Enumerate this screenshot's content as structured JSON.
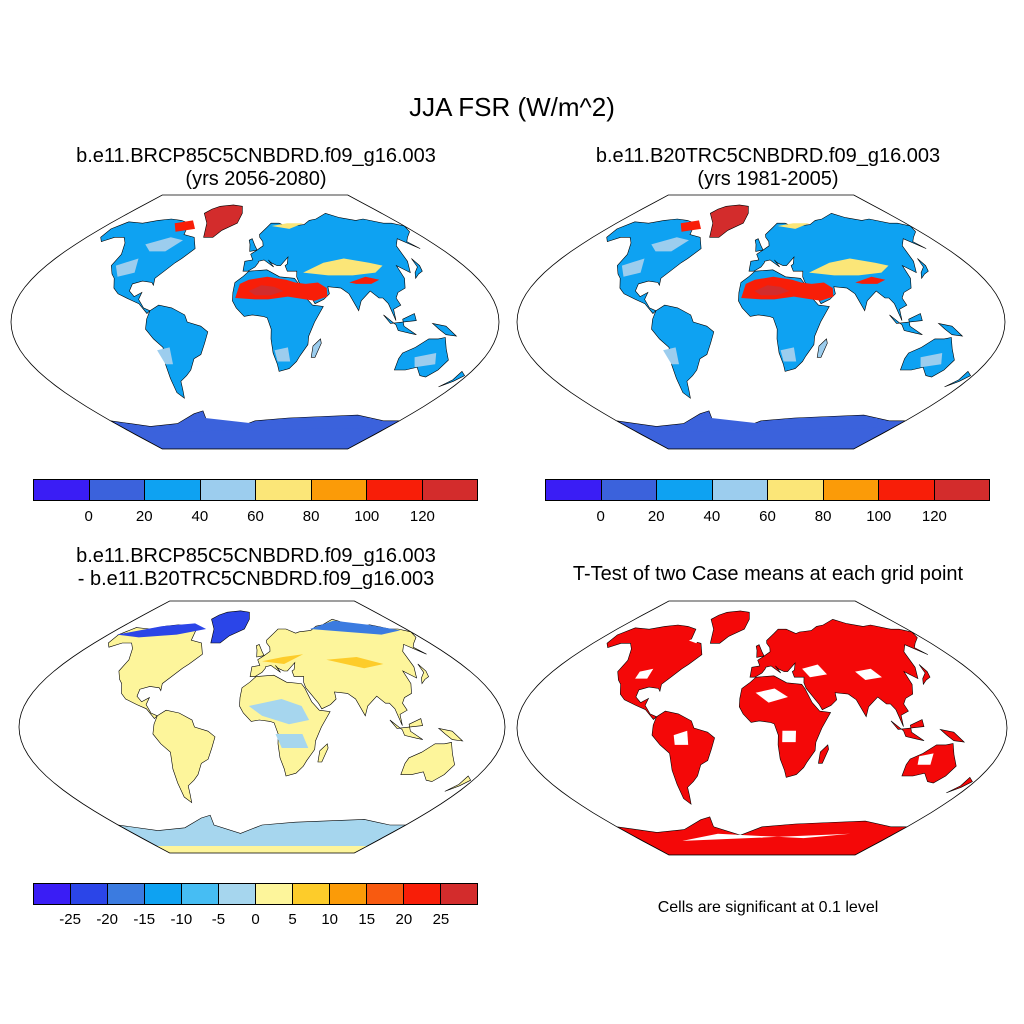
{
  "title": "JJA FSR (W/m^2)",
  "panels": [
    {
      "id": "future",
      "title_line1": "b.e11.BRCP85C5CNBDRD.f09_g16.003",
      "title_line2": "(yrs 2056-2080)"
    },
    {
      "id": "historical",
      "title_line1": "b.e11.B20TRC5CNBDRD.f09_g16.003",
      "title_line2": "(yrs 1981-2005)"
    },
    {
      "id": "difference",
      "title_line1": "b.e11.BRCP85C5CNBDRD.f09_g16.003",
      "title_line2": "- b.e11.B20TRC5CNBDRD.f09_g16.003"
    },
    {
      "id": "ttest",
      "title_line1": "T-Test of two Case means at each grid point",
      "title_line2": ""
    }
  ],
  "colorbar_abs": {
    "colors": [
      "#3a1df5",
      "#3b62dc",
      "#0ea2f2",
      "#9ccdee",
      "#fbe678",
      "#fb9b08",
      "#f81e08",
      "#d32c2c"
    ],
    "labels": [
      "0",
      "20",
      "40",
      "60",
      "80",
      "100",
      "120"
    ]
  },
  "colorbar_diff": {
    "colors": [
      "#3a1df5",
      "#2b45e8",
      "#3b7be0",
      "#0ea2f2",
      "#46bdf3",
      "#a6d6ee",
      "#fdf59b",
      "#fdcc2a",
      "#fb9b08",
      "#f85a10",
      "#f81e08",
      "#d32c2c"
    ],
    "labels": [
      "-25",
      "-20",
      "-15",
      "-10",
      "-5",
      "0",
      "5",
      "10",
      "15",
      "20",
      "25"
    ]
  },
  "significance_note": "Cells are significant at 0.1 level",
  "colors": {
    "land_outline": "#000000",
    "significant": "#f40808"
  }
}
